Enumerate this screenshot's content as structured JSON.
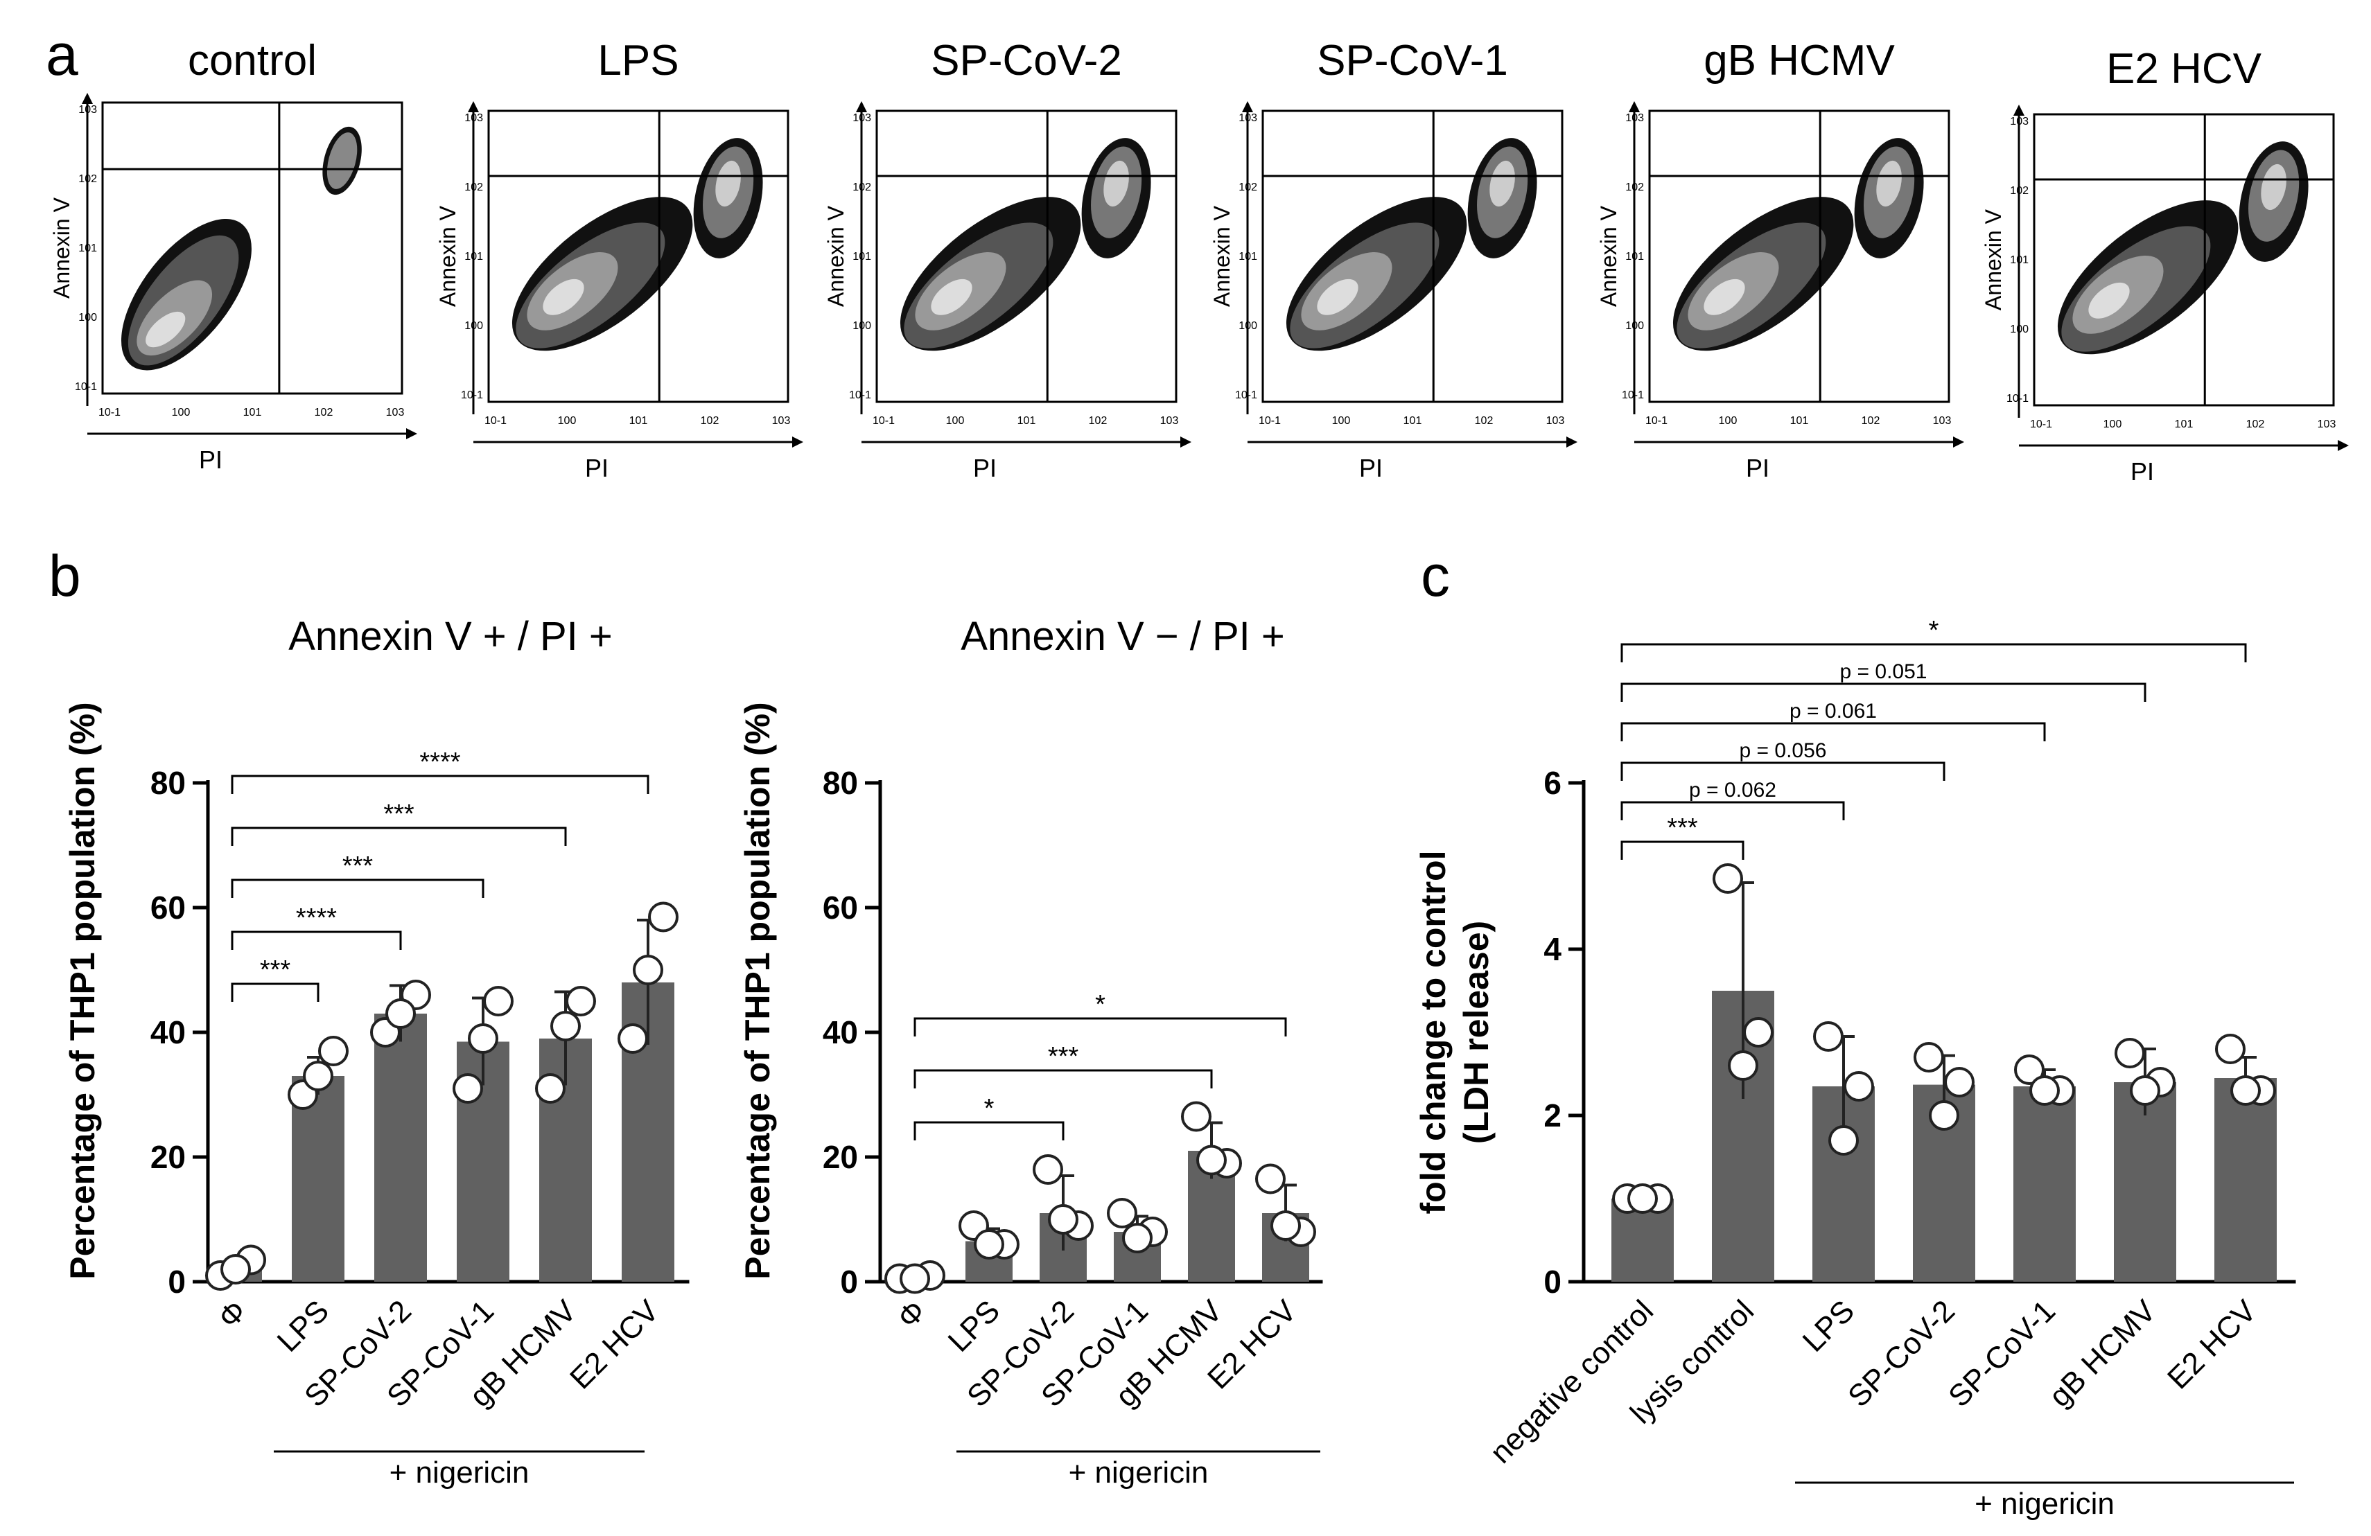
{
  "panel_letters": {
    "a": "a",
    "b": "b",
    "c": "c"
  },
  "flow": {
    "x_axis_label": "PI",
    "y_axis_label": "Annexin V",
    "tick_labels": [
      "10-1",
      "100",
      "101",
      "102",
      "103"
    ],
    "plots": [
      {
        "title": "control"
      },
      {
        "title": "LPS"
      },
      {
        "title": "SP-CoV-2"
      },
      {
        "title": "SP-CoV-1"
      },
      {
        "title": "gB HCMV"
      },
      {
        "title": "E2 HCV"
      }
    ]
  },
  "chart_data": [
    {
      "type": "bar",
      "title": "Annexin V + / PI +",
      "ylabel": "Percentage of THP1 population (%)",
      "ylim": [
        0,
        80
      ],
      "yticks": [
        0,
        20,
        40,
        60,
        80
      ],
      "categories": [
        "Φ",
        "LPS",
        "SP-CoV-2",
        "SP-CoV-1",
        "gB HCMV",
        "E2 HCV"
      ],
      "values": [
        2,
        33,
        43,
        38.5,
        39,
        48
      ],
      "errors": [
        0,
        3,
        4.5,
        7,
        7.5,
        10
      ],
      "points": [
        [
          1,
          3.5,
          2
        ],
        [
          30,
          37,
          33
        ],
        [
          40,
          46,
          43
        ],
        [
          31,
          45,
          39
        ],
        [
          31,
          45,
          41
        ],
        [
          39,
          58.5,
          50
        ]
      ],
      "group_label": "+ nigericin",
      "significance": [
        {
          "from": 0,
          "to": 1,
          "label": "***"
        },
        {
          "from": 0,
          "to": 2,
          "label": "****"
        },
        {
          "from": 0,
          "to": 3,
          "label": "***"
        },
        {
          "from": 0,
          "to": 4,
          "label": "***"
        },
        {
          "from": 0,
          "to": 5,
          "label": "****"
        }
      ]
    },
    {
      "type": "bar",
      "title": "Annexin V − / PI +",
      "ylabel": "Percentage of THP1 population (%)",
      "ylim": [
        0,
        80
      ],
      "yticks": [
        0,
        20,
        40,
        60,
        80
      ],
      "categories": [
        "Φ",
        "LPS",
        "SP-CoV-2",
        "SP-CoV-1",
        "gB HCMV",
        "E2 HCV"
      ],
      "values": [
        0.5,
        6.5,
        11,
        8,
        21,
        11
      ],
      "errors": [
        0,
        2,
        6,
        2.5,
        4.5,
        4.5
      ],
      "points": [
        [
          0.5,
          1,
          0.5
        ],
        [
          9,
          6,
          6
        ],
        [
          18,
          9,
          10
        ],
        [
          11,
          8,
          7
        ],
        [
          26.5,
          19,
          19.5
        ],
        [
          16.5,
          8,
          9
        ]
      ],
      "group_label": "+ nigericin",
      "significance": [
        {
          "from": 0,
          "to": 2,
          "label": "*"
        },
        {
          "from": 0,
          "to": 4,
          "label": "***"
        },
        {
          "from": 0,
          "to": 5,
          "label": "*"
        }
      ]
    },
    {
      "type": "bar",
      "title": "",
      "ylabel": "fold change to control",
      "ylabel2": "(LDH release)",
      "ylim": [
        0,
        6
      ],
      "yticks": [
        0,
        2,
        4,
        6
      ],
      "categories": [
        "negative control",
        "lysis control",
        "LPS",
        "SP-CoV-2",
        "SP-CoV-1",
        "gB HCMV",
        "E2 HCV"
      ],
      "values": [
        1,
        3.5,
        2.35,
        2.37,
        2.35,
        2.4,
        2.45
      ],
      "errors": [
        0,
        1.3,
        0.6,
        0.35,
        0.2,
        0.4,
        0.25
      ],
      "points": [
        [
          1,
          1,
          1
        ],
        [
          4.85,
          3.0,
          2.6
        ],
        [
          2.95,
          2.35,
          1.7
        ],
        [
          2.7,
          2.4,
          2.0
        ],
        [
          2.55,
          2.3,
          2.3
        ],
        [
          2.75,
          2.4,
          2.3
        ],
        [
          2.8,
          2.3,
          2.3
        ]
      ],
      "group_label": "+ nigericin",
      "significance": [
        {
          "from": 0,
          "to": 1,
          "label": "***"
        },
        {
          "from": 0,
          "to": 2,
          "label": "p = 0.062"
        },
        {
          "from": 0,
          "to": 3,
          "label": "p = 0.056"
        },
        {
          "from": 0,
          "to": 4,
          "label": "p = 0.061"
        },
        {
          "from": 0,
          "to": 5,
          "label": "p = 0.051"
        },
        {
          "from": 0,
          "to": 6,
          "label": "*"
        }
      ]
    }
  ]
}
